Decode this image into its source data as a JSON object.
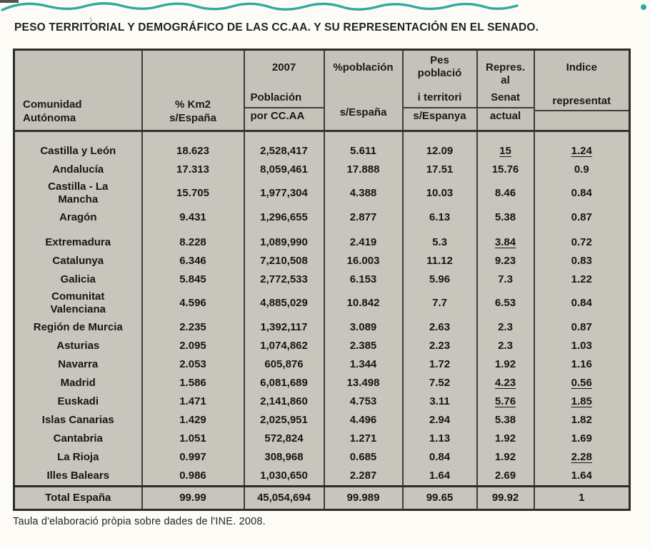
{
  "page": {
    "title": "PESO TERRITORIAL Y DEMOGRÁFICO DE LAS CC.AA. Y SU REPRESENTACIÓN EN EL SENADO.",
    "footnote": "Taula d'elaboració pròpia sobre dades de l'INE. 2008.",
    "accent_color": "#18a294",
    "table_background": "#c8c5bc",
    "paper_color": "#fcfbf5",
    "border_color": "#3d3d3d"
  },
  "table": {
    "header": {
      "c1_l1": "Comunidad",
      "c1_l2": "Autónoma",
      "c2_l1": "% Km2",
      "c2_l2": "s/España",
      "c3_year": "2007",
      "c3_l1": "Población",
      "c3_l2": "por CC.AA",
      "c4_l1": "%población",
      "c4_l2": "s/España",
      "c5_l1": "Pes",
      "c5_l2": "població",
      "c5_l3": "i territori",
      "c5_l4": "s/Espanya",
      "c6_l1": "Repres.",
      "c6_l2": "al",
      "c6_l3": "Senat",
      "c6_l4": "actual",
      "c7_l1": "Indice",
      "c7_l2": "representat"
    },
    "rows": [
      {
        "cells": [
          "Castilla y León",
          "18.623",
          "2,528,417",
          "5.611",
          "12.09",
          {
            "v": "15",
            "u": true
          },
          {
            "v": "1.24",
            "u": true
          }
        ]
      },
      {
        "cells": [
          "Andalucía",
          "17.313",
          "8,059,461",
          "17.888",
          "17.51",
          "15.76",
          "0.9"
        ]
      },
      {
        "cells": [
          "Castilla - La\nMancha",
          "15.705",
          "1,977,304",
          "4.388",
          "10.03",
          "8.46",
          "0.84"
        ]
      },
      {
        "cells": [
          "Aragón",
          "9.431",
          "1,296,655",
          "2.877",
          "6.13",
          "5.38",
          "0.87"
        ]
      },
      {
        "cells": [
          "Extremadura",
          "8.228",
          "1,089,990",
          "2.419",
          "5.3",
          {
            "v": "3.84",
            "u": true
          },
          "0.72"
        ],
        "gap_before": true
      },
      {
        "cells": [
          "Catalunya",
          "6.346",
          "7,210,508",
          "16.003",
          "11.12",
          "9.23",
          "0.83"
        ]
      },
      {
        "cells": [
          "Galicia",
          "5.845",
          "2,772,533",
          "6.153",
          "5.96",
          "7.3",
          "1.22"
        ]
      },
      {
        "cells": [
          "Comunitat\nValenciana",
          "4.596",
          "4,885,029",
          "10.842",
          "7.7",
          "6.53",
          "0.84"
        ]
      },
      {
        "cells": [
          "Región de Murcia",
          "2.235",
          "1,392,117",
          "3.089",
          "2.63",
          "2.3",
          "0.87"
        ]
      },
      {
        "cells": [
          "Asturias",
          "2.095",
          "1,074,862",
          "2.385",
          "2.23",
          "2.3",
          "1.03"
        ]
      },
      {
        "cells": [
          "Navarra",
          "2.053",
          "605,876",
          "1.344",
          "1.72",
          "1.92",
          "1.16"
        ]
      },
      {
        "cells": [
          "Madrid",
          "1.586",
          "6,081,689",
          "13.498",
          "7.52",
          {
            "v": "4.23",
            "u": true
          },
          {
            "v": "0.56",
            "u": true
          }
        ]
      },
      {
        "cells": [
          "Euskadi",
          "1.471",
          "2,141,860",
          "4.753",
          "3.11",
          {
            "v": "5.76",
            "u": true
          },
          {
            "v": "1.85",
            "u": true
          }
        ]
      },
      {
        "cells": [
          "Islas Canarias",
          "1.429",
          "2,025,951",
          "4.496",
          "2.94",
          "5.38",
          "1.82"
        ]
      },
      {
        "cells": [
          "Cantabria",
          "1.051",
          "572,824",
          "1.271",
          "1.13",
          "1.92",
          "1.69"
        ]
      },
      {
        "cells": [
          "La Rioja",
          "0.997",
          "308,968",
          "0.685",
          "0.84",
          "1.92",
          {
            "v": "2.28",
            "u": true
          }
        ]
      },
      {
        "cells": [
          "Illes Balears",
          "0.986",
          "1,030,650",
          "2.287",
          "1.64",
          "2.69",
          "1.64"
        ]
      }
    ],
    "total": {
      "cells": [
        "Total España",
        "99.99",
        "45,054,694",
        "99.989",
        "99.65",
        "99.92",
        "1"
      ]
    }
  }
}
